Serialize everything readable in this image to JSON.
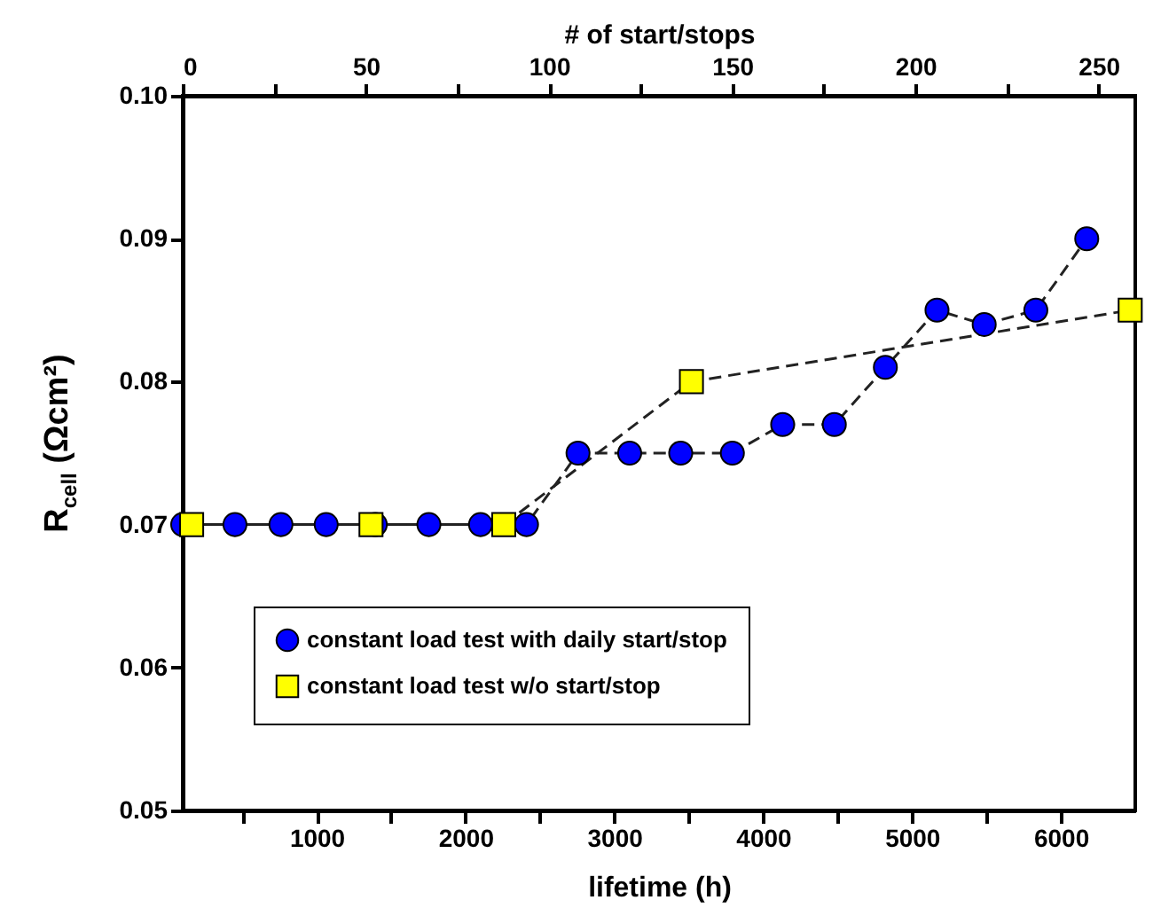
{
  "chart_data": {
    "type": "line",
    "xlabel": "lifetime (h)",
    "x2label": "# of start/stops",
    "ylabel": "R$_{cell}$ (Ωcm²)",
    "xlim": [
      100,
      6500
    ],
    "xticks": [
      {
        "value": 500,
        "label": null
      },
      1000,
      {
        "value": 1500,
        "label": null
      },
      2000,
      {
        "value": 2500,
        "label": null
      },
      3000,
      {
        "value": 3500,
        "label": null
      },
      4000,
      {
        "value": 4500,
        "label": null
      },
      5000,
      {
        "value": 5500,
        "label": null
      },
      6000
    ],
    "x2lim": [
      0,
      260
    ],
    "x2ticks": [
      0,
      {
        "value": 25,
        "label": null
      },
      50,
      {
        "value": 75,
        "label": null
      },
      100,
      {
        "value": 125,
        "label": null
      },
      150,
      {
        "value": 175,
        "label": null
      },
      200,
      {
        "value": 225,
        "label": null
      },
      250
    ],
    "ylim": [
      0.05,
      0.1
    ],
    "yticks": [
      0.05,
      0.06,
      0.07,
      0.08,
      0.09,
      {
        "value": 0.1,
        "label": "0.10"
      }
    ],
    "grid": false,
    "legend": "bottom left",
    "line_style": "dashed",
    "series": [
      {
        "name": "constant load test with daily start/stop",
        "color": "#0000ff",
        "marker": "circle",
        "x": [
          100,
          451,
          760,
          1064,
          1394,
          1754,
          2101,
          2410,
          2756,
          3103,
          3446,
          3793,
          4131,
          4478,
          4821,
          5168,
          5485,
          5832,
          6174
        ],
        "values": [
          0.07,
          0.07,
          0.07,
          0.07,
          0.07,
          0.07,
          0.07,
          0.07,
          0.075,
          0.075,
          0.075,
          0.075,
          0.077,
          0.077,
          0.081,
          0.085,
          0.084,
          0.085,
          0.09
        ]
      },
      {
        "name": "constant load test w/o start/stop",
        "color": "#ffff00",
        "marker": "square",
        "x": [
          160,
          1365,
          2257,
          3518,
          6466
        ],
        "values": [
          0.07,
          0.07,
          0.07,
          0.08,
          0.085
        ]
      }
    ]
  }
}
